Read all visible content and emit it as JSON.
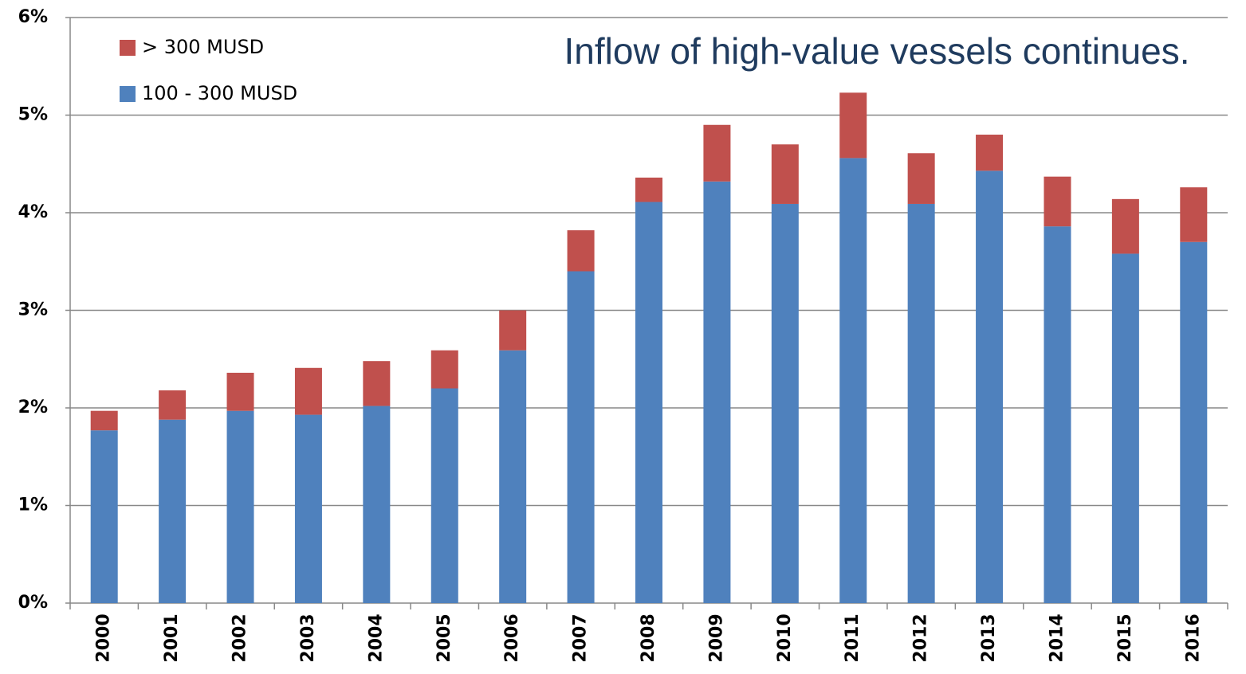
{
  "chart_data": {
    "type": "stacked_bar",
    "title": "Inflow of high-value vessels continues.",
    "categories": [
      "2000",
      "2001",
      "2002",
      "2003",
      "2004",
      "2005",
      "2006",
      "2007",
      "2008",
      "2009",
      "2010",
      "2011",
      "2012",
      "2013",
      "2014",
      "2015",
      "2016"
    ],
    "series": [
      {
        "name": "100 - 300 MUSD",
        "color": "#4f81bd",
        "values": [
          1.77,
          1.88,
          1.97,
          1.93,
          2.02,
          2.2,
          2.59,
          3.4,
          4.11,
          4.32,
          4.09,
          4.56,
          4.09,
          4.43,
          3.86,
          3.58,
          3.7
        ]
      },
      {
        "name": "> 300 MUSD",
        "color": "#c0504d",
        "values": [
          0.2,
          0.3,
          0.39,
          0.48,
          0.46,
          0.39,
          0.41,
          0.42,
          0.25,
          0.58,
          0.61,
          0.67,
          0.52,
          0.37,
          0.51,
          0.56,
          0.56
        ]
      }
    ],
    "ylim": [
      0,
      6
    ],
    "yticks": [
      {
        "value": 0,
        "label": "0%"
      },
      {
        "value": 1,
        "label": "1%"
      },
      {
        "value": 2,
        "label": "2%"
      },
      {
        "value": 3,
        "label": "3%"
      },
      {
        "value": 4,
        "label": "4%"
      },
      {
        "value": 5,
        "label": "5%"
      },
      {
        "value": 6,
        "label": "6%"
      }
    ],
    "grid": true,
    "legend": "top-left"
  }
}
